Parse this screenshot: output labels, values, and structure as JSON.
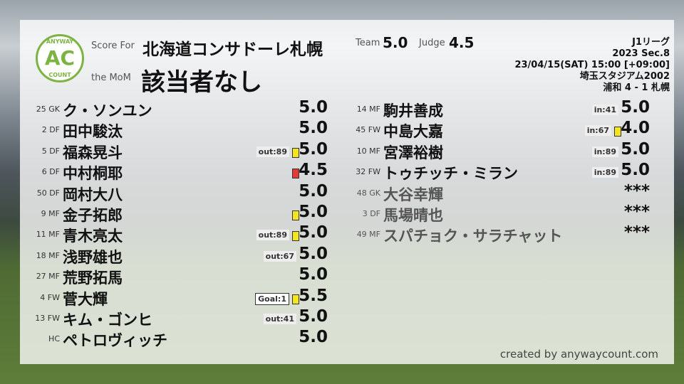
{
  "header": {
    "score_for_label": "Score For",
    "team_name": "北海道コンサドーレ札幌",
    "mom_label": "the MoM",
    "mom": "該当者なし",
    "team_label": "Team",
    "team_score": "5.0",
    "judge_label": "Judge",
    "judge_score": "4.5"
  },
  "logo": {
    "top": "ANYWAY",
    "mid": "AC",
    "bottom": "COUNT"
  },
  "match": {
    "league": "J1リーグ",
    "section": "2023 Sec.8",
    "datetime": "23/04/15(SAT) 15:00 [+09:00]",
    "venue": "埼玉スタジアム2002",
    "result": "浦和 4 - 1 札幌"
  },
  "colors": {
    "yellow_card": "#f5e61c",
    "red_card": "#e53935",
    "accent": "#7cb342"
  },
  "left_players": [
    {
      "pos": "25 GK",
      "name": "ク・ソンユン",
      "score": "5.0",
      "badge": "",
      "card": ""
    },
    {
      "pos": "2 DF",
      "name": "田中駿汰",
      "score": "5.0",
      "badge": "",
      "card": ""
    },
    {
      "pos": "5 DF",
      "name": "福森晃斗",
      "score": "5.0",
      "badge": "out:89",
      "card": "yellow"
    },
    {
      "pos": "6 DF",
      "name": "中村桐耶",
      "score": "4.5",
      "badge": "",
      "card": "red"
    },
    {
      "pos": "50 DF",
      "name": "岡村大八",
      "score": "5.0",
      "badge": "",
      "card": ""
    },
    {
      "pos": "9 MF",
      "name": "金子拓郎",
      "score": "5.0",
      "badge": "",
      "card": "yellow"
    },
    {
      "pos": "11 MF",
      "name": "青木亮太",
      "score": "5.0",
      "badge": "out:89",
      "card": "yellow"
    },
    {
      "pos": "18 MF",
      "name": "浅野雄也",
      "score": "5.0",
      "badge": "out:67",
      "card": ""
    },
    {
      "pos": "27 MF",
      "name": "荒野拓馬",
      "score": "5.0",
      "badge": "",
      "card": ""
    },
    {
      "pos": "4 FW",
      "name": "菅大輝",
      "score": "5.5",
      "badge": "Goal:1",
      "card": "yellow"
    },
    {
      "pos": "13 FW",
      "name": "キム・ゴンヒ",
      "score": "5.0",
      "badge": "out:41",
      "card": ""
    },
    {
      "pos": "HC",
      "name": "ペトロヴィッチ",
      "score": "5.0",
      "badge": "",
      "card": ""
    }
  ],
  "right_players": [
    {
      "pos": "14 MF",
      "name": "駒井善成",
      "score": "5.0",
      "badge": "in:41",
      "card": ""
    },
    {
      "pos": "45 FW",
      "name": "中島大嘉",
      "score": "4.0",
      "badge": "in:67",
      "card": "yellow"
    },
    {
      "pos": "10 MF",
      "name": "宮澤裕樹",
      "score": "5.0",
      "badge": "in:89",
      "card": ""
    },
    {
      "pos": "32 FW",
      "name": "トゥチッチ・ミラン",
      "score": "5.0",
      "badge": "in:89",
      "card": ""
    },
    {
      "pos": "48 GK",
      "name": "大谷幸輝",
      "score": "***",
      "badge": "",
      "card": "",
      "dim": true
    },
    {
      "pos": "3 DF",
      "name": "馬場晴也",
      "score": "***",
      "badge": "",
      "card": "",
      "dim": true
    },
    {
      "pos": "49 MF",
      "name": "スパチョク・サラチャット",
      "score": "***",
      "badge": "",
      "card": "",
      "dim": true
    }
  ],
  "footer": "created by anywaycount.com"
}
